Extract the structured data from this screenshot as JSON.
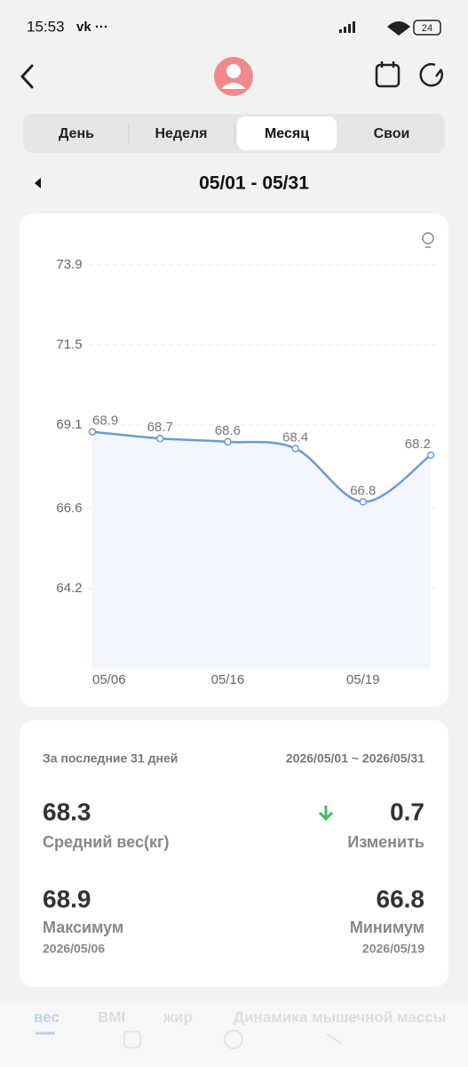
{
  "status_bar": {
    "time": "15:53",
    "battery": "24"
  },
  "tabs": [
    "День",
    "Неделя",
    "Месяц",
    "Свои"
  ],
  "date_range": "05/01 - 05/31",
  "chart_data": {
    "type": "line",
    "categories": [
      "05/06",
      null,
      "05/16",
      null,
      "05/19",
      null
    ],
    "series": [
      {
        "color": "#6b9ad6",
        "values": [
          68.9,
          68.7,
          68.6,
          68.4,
          66.8,
          68.2
        ]
      }
    ],
    "ylim": [
      61.8,
      73.9
    ],
    "yticks": [
      73.9,
      71.5,
      69.1,
      66.6,
      64.2
    ],
    "grid": true
  },
  "summary": {
    "period_label": "За последние 31 дней",
    "period_dates": "2026/05/01 ~ 2026/05/31",
    "average": 68.3,
    "average_label": "Средний вес(кг)",
    "change": 0.7,
    "change_label": "Изменить",
    "max": 68.9,
    "max_label": "Максимум",
    "max_date": "2026/05/06",
    "min": 66.8,
    "min_label": "Минимум",
    "min_date": "2026/05/19"
  },
  "bottom_tabs": [
    "вес",
    "BMI",
    "жир",
    "Динамика мышечной массы"
  ]
}
